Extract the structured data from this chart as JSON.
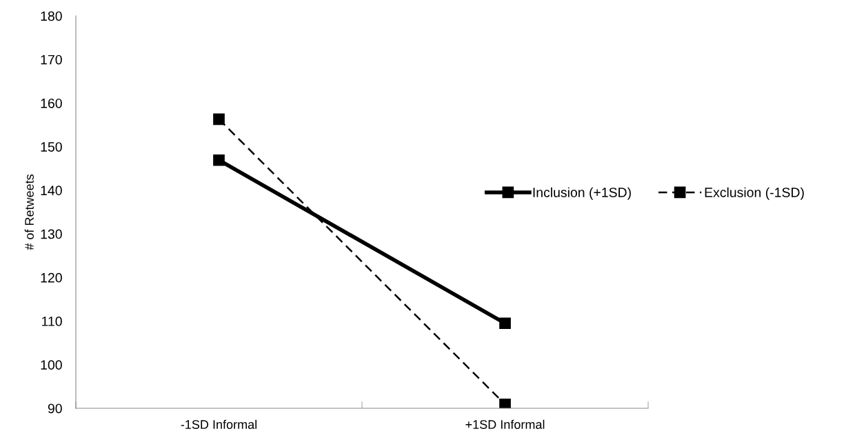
{
  "chart_data": {
    "type": "line",
    "ylabel": "# of Retweets",
    "categories": [
      "-1SD Informal",
      "+1SD Informal"
    ],
    "series": [
      {
        "name": "Inclusion (+1SD)",
        "color": "#000000",
        "values": [
          146.9,
          109.5
        ],
        "line_style": "solid",
        "marker": "square"
      },
      {
        "name": "Exclusion (-1SD)",
        "color": "#000000",
        "values": [
          156.3,
          90.9
        ],
        "line_style": "dashed",
        "marker": "square"
      }
    ],
    "ylim": [
      90,
      180
    ],
    "yticks": [
      90,
      100,
      110,
      120,
      130,
      140,
      150,
      160,
      170,
      180
    ],
    "grid": false,
    "legend": "right"
  }
}
